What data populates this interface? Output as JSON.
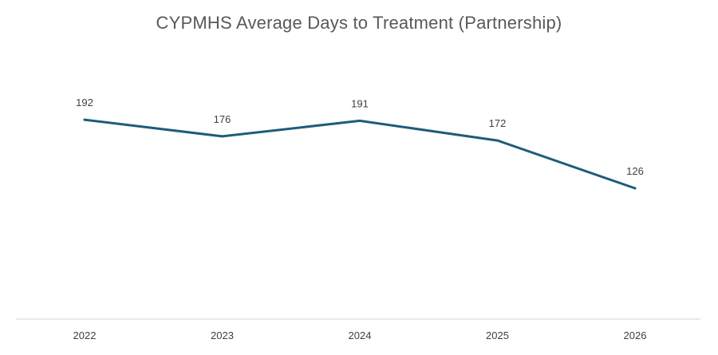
{
  "chart_data": {
    "type": "line",
    "title": "CYPMHS Average Days to Treatment (Partnership)",
    "xlabel": "",
    "ylabel": "",
    "categories": [
      "2022",
      "2023",
      "2024",
      "2025",
      "2026"
    ],
    "series": [
      {
        "values": [
          192,
          176,
          191,
          172,
          126
        ],
        "color": "#1f5c7a"
      }
    ],
    "data_labels": [
      "192",
      "176",
      "191",
      "172",
      "126"
    ],
    "ylim": [
      0,
      300
    ],
    "grid": false,
    "legend": "none",
    "axis_color": "#d9d9d9"
  }
}
